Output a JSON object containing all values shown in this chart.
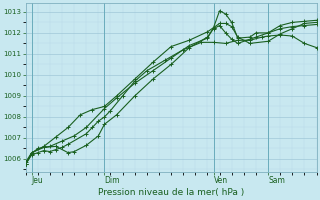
{
  "xlabel": "Pression niveau de la mer( hPa )",
  "background_color": "#c8e8f0",
  "grid_major_color": "#a0c8d8",
  "grid_minor_color": "#b8d8e8",
  "line_color": "#1a6020",
  "xlim": [
    0,
    96
  ],
  "ylim": [
    1005.4,
    1013.4
  ],
  "yticks": [
    1006,
    1007,
    1008,
    1009,
    1010,
    1011,
    1012,
    1013
  ],
  "xtick_positions": [
    2,
    26,
    62,
    80
  ],
  "xtick_labels": [
    "Jeu",
    "Dim",
    "Ven",
    "Sam"
  ],
  "vline_positions": [
    2,
    26,
    62,
    80
  ],
  "series": [
    {
      "x": [
        0,
        2,
        4,
        6,
        8,
        10,
        12,
        14,
        20,
        22,
        24,
        26,
        28,
        32,
        36,
        40,
        46,
        52,
        58,
        62,
        66,
        70,
        74,
        78,
        80,
        84,
        88,
        92,
        96
      ],
      "y": [
        1005.75,
        1006.2,
        1006.3,
        1006.4,
        1006.35,
        1006.45,
        1006.55,
        1006.7,
        1007.2,
        1007.5,
        1007.8,
        1008.0,
        1008.3,
        1009.0,
        1009.7,
        1010.2,
        1010.7,
        1011.2,
        1011.55,
        1011.55,
        1011.5,
        1011.65,
        1011.65,
        1011.8,
        1011.85,
        1011.9,
        1011.85,
        1011.5,
        1011.3
      ]
    },
    {
      "x": [
        0,
        2,
        4,
        6,
        8,
        12,
        16,
        20,
        26,
        30,
        36,
        42,
        48,
        54,
        60,
        62,
        64,
        66,
        68,
        70,
        74,
        80,
        84,
        88,
        92,
        96
      ],
      "y": [
        1005.75,
        1006.25,
        1006.5,
        1006.55,
        1006.6,
        1006.85,
        1007.1,
        1007.5,
        1008.4,
        1008.9,
        1009.6,
        1010.2,
        1010.8,
        1011.4,
        1011.75,
        1012.25,
        1012.45,
        1012.45,
        1012.3,
        1011.8,
        1011.5,
        1011.6,
        1011.95,
        1012.2,
        1012.45,
        1012.5
      ]
    },
    {
      "x": [
        0,
        2,
        6,
        10,
        14,
        18,
        22,
        26,
        30,
        36,
        42,
        48,
        54,
        60,
        62,
        64,
        66,
        68,
        70,
        74,
        76,
        80,
        84,
        88,
        92,
        96
      ],
      "y": [
        1005.75,
        1006.3,
        1006.6,
        1007.05,
        1007.5,
        1008.1,
        1008.35,
        1008.5,
        1009.0,
        1009.8,
        1010.6,
        1011.35,
        1011.65,
        1012.05,
        1012.25,
        1013.05,
        1012.9,
        1012.5,
        1011.75,
        1011.8,
        1012.0,
        1012.0,
        1012.35,
        1012.5,
        1012.55,
        1012.6
      ]
    },
    {
      "x": [
        0,
        2,
        6,
        10,
        14,
        16,
        20,
        24,
        26,
        30,
        36,
        42,
        48,
        54,
        60,
        62,
        64,
        66,
        68,
        70,
        76,
        80,
        84,
        88,
        92,
        96
      ],
      "y": [
        1005.85,
        1006.3,
        1006.55,
        1006.6,
        1006.3,
        1006.35,
        1006.65,
        1007.1,
        1007.65,
        1008.1,
        1009.0,
        1009.8,
        1010.5,
        1011.3,
        1011.8,
        1012.2,
        1012.35,
        1012.0,
        1011.7,
        1011.5,
        1011.8,
        1012.0,
        1012.2,
        1012.3,
        1012.35,
        1012.4
      ]
    }
  ]
}
